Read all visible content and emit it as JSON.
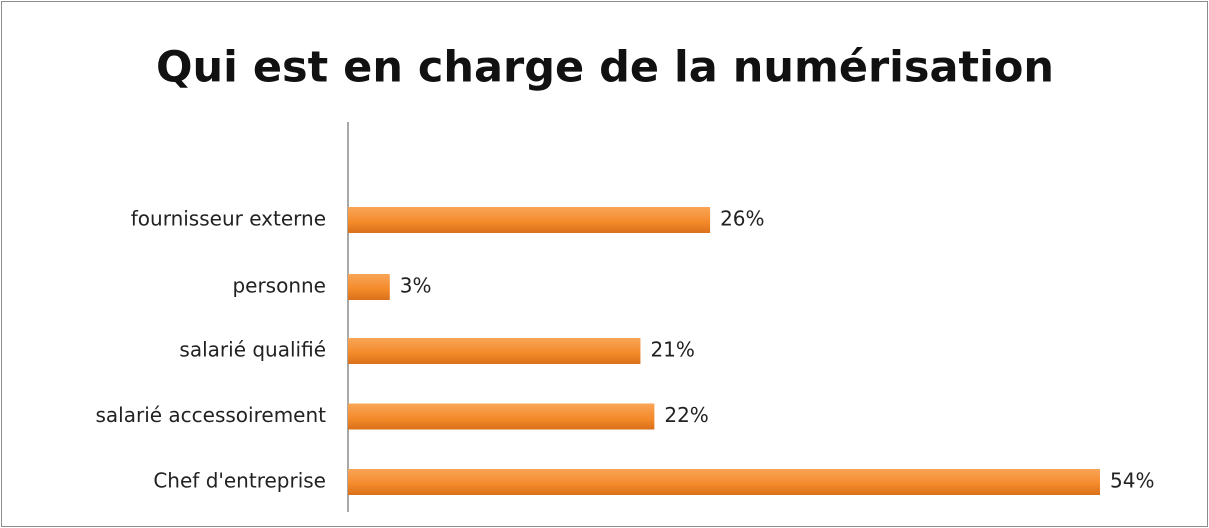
{
  "chart_data": {
    "type": "bar",
    "orientation": "horizontal",
    "title": "Qui est en charge de la numérisation",
    "categories": [
      "fournisseur externe",
      "personne",
      "salarié qualifié",
      "salarié accessoirement",
      "Chef d'entreprise"
    ],
    "values": [
      26,
      3,
      21,
      22,
      54
    ],
    "value_labels": [
      "26%",
      "3%",
      "21%",
      "22%",
      "54%"
    ],
    "color": "#f4892a"
  }
}
